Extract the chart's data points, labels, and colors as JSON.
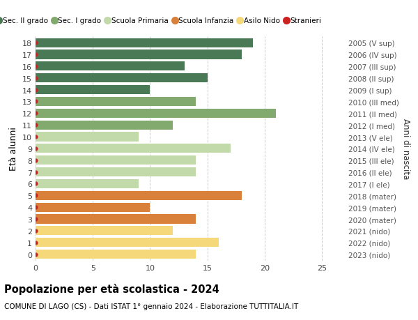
{
  "ages": [
    18,
    17,
    16,
    15,
    14,
    13,
    12,
    11,
    10,
    9,
    8,
    7,
    6,
    5,
    4,
    3,
    2,
    1,
    0
  ],
  "right_labels": [
    "2005 (V sup)",
    "2006 (IV sup)",
    "2007 (III sup)",
    "2008 (II sup)",
    "2009 (I sup)",
    "2010 (III med)",
    "2011 (II med)",
    "2012 (I med)",
    "2013 (V ele)",
    "2014 (IV ele)",
    "2015 (III ele)",
    "2016 (II ele)",
    "2017 (I ele)",
    "2018 (mater)",
    "2019 (mater)",
    "2020 (mater)",
    "2021 (nido)",
    "2022 (nido)",
    "2023 (nido)"
  ],
  "values": [
    19,
    18,
    13,
    15,
    10,
    14,
    21,
    12,
    9,
    17,
    14,
    14,
    9,
    18,
    10,
    14,
    12,
    16,
    14
  ],
  "colors": [
    "#4a7a55",
    "#4a7a55",
    "#4a7a55",
    "#4a7a55",
    "#4a7a55",
    "#82a96e",
    "#82a96e",
    "#82a96e",
    "#c2d9aa",
    "#c2d9aa",
    "#c2d9aa",
    "#c2d9aa",
    "#c2d9aa",
    "#d9813a",
    "#d9813a",
    "#d9813a",
    "#f5d87a",
    "#f5d87a",
    "#f5d87a"
  ],
  "legend_labels": [
    "Sec. II grado",
    "Sec. I grado",
    "Scuola Primaria",
    "Scuola Infanzia",
    "Asilo Nido",
    "Stranieri"
  ],
  "legend_colors": [
    "#4a7a55",
    "#82a96e",
    "#c2d9aa",
    "#d9813a",
    "#f5d87a",
    "#cc2222"
  ],
  "dot_color": "#cc2222",
  "title": "Popolazione per età scolastica - 2024",
  "subtitle": "COMUNE DI LAGO (CS) - Dati ISTAT 1° gennaio 2024 - Elaborazione TUTTITALIA.IT",
  "ylabel": "Età alunni",
  "right_ylabel": "Anni di nascita",
  "xlim": [
    0,
    27
  ],
  "xticks": [
    0,
    5,
    10,
    15,
    20,
    25
  ],
  "bar_height": 0.78,
  "background_color": "#ffffff",
  "grid_color": "#cccccc",
  "figsize": [
    6.0,
    4.6
  ],
  "dpi": 100
}
